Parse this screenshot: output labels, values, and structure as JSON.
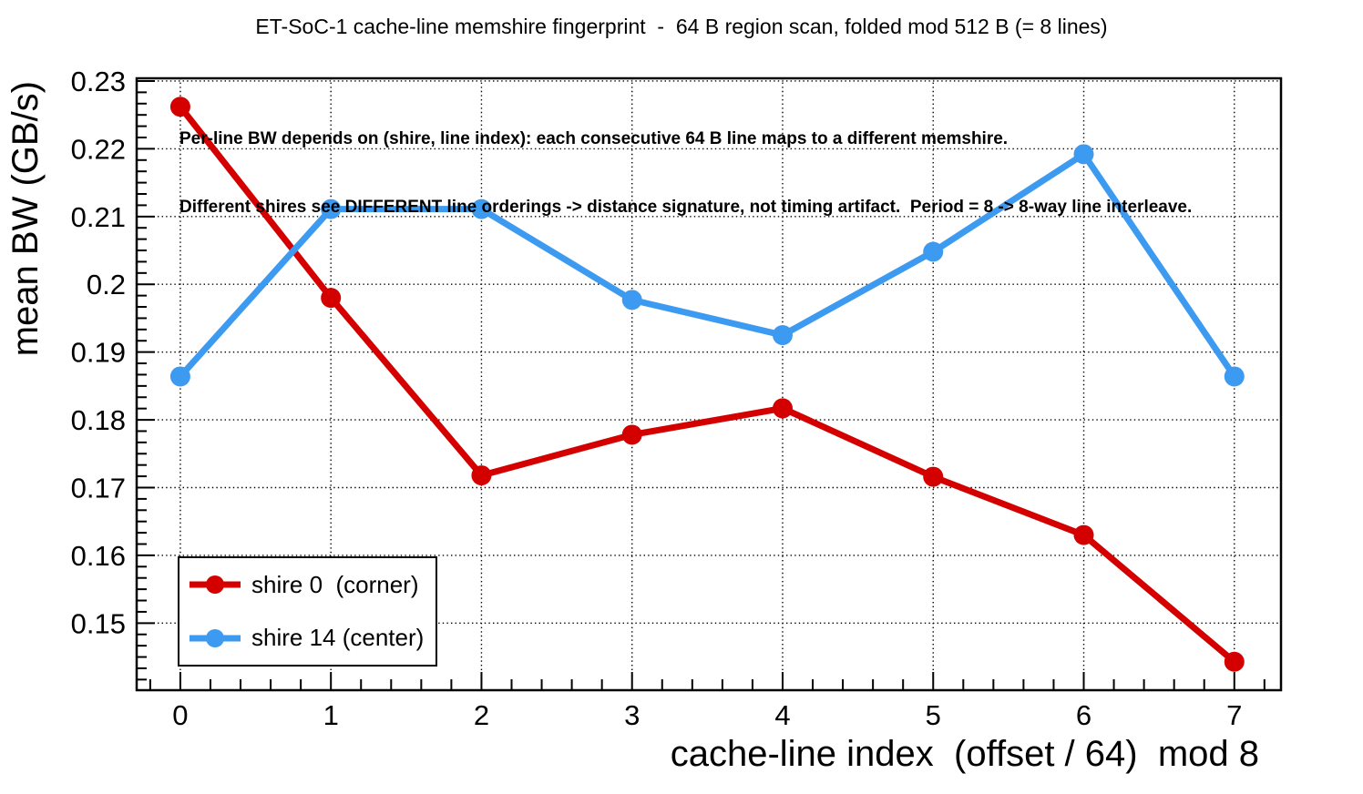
{
  "header": {
    "title": "ET-SoC-1 cache-line memshire fingerprint  -  64 B region scan, folded mod 512 B (= 8 lines)"
  },
  "annotation": {
    "line1": "Per-line BW depends on (shire, line index): each consecutive 64 B line maps to a different memshire.",
    "line2": "Different shires see DIFFERENT line orderings -> distance signature, not timing artifact.  Period = 8 -> 8-way line interleave."
  },
  "axes": {
    "x_title": "cache-line index  (offset / 64)  mod 8",
    "y_title": "mean BW (GB/s)"
  },
  "colors": {
    "shire0": "#d40000",
    "shire14": "#3d9af1",
    "frame": "#000000",
    "grid": "#000000",
    "background": "#ffffff"
  },
  "chart_data": {
    "type": "line",
    "title": "ET-SoC-1 cache-line memshire fingerprint  -  64 B region scan, folded mod 512 B (= 8 lines)",
    "xlabel": "cache-line index  (offset / 64)  mod 8",
    "ylabel": "mean BW (GB/s)",
    "x": [
      0,
      1,
      2,
      3,
      4,
      5,
      6,
      7
    ],
    "series": [
      {
        "name": "shire 0  (corner)",
        "color": "#d40000",
        "values": [
          0.2262,
          0.198,
          0.1718,
          0.1778,
          0.1817,
          0.1716,
          0.163,
          0.1443
        ]
      },
      {
        "name": "shire 14 (center)",
        "color": "#3d9af1",
        "values": [
          0.1864,
          0.2111,
          0.2111,
          0.1977,
          0.1925,
          0.2048,
          0.2192,
          0.1864
        ]
      }
    ],
    "xticks": [
      0,
      1,
      2,
      3,
      4,
      5,
      6,
      7
    ],
    "yticks": [
      0.15,
      0.16,
      0.17,
      0.18,
      0.19,
      0.2,
      0.21,
      0.22,
      0.23
    ],
    "xlim": [
      -0.29,
      7.31
    ],
    "ylim": [
      0.1401,
      0.2304
    ],
    "grid": "dotted",
    "legend_position": "bottom-left",
    "legend": {
      "entries": [
        "shire 0  (corner)",
        "shire 14 (center)"
      ]
    }
  }
}
